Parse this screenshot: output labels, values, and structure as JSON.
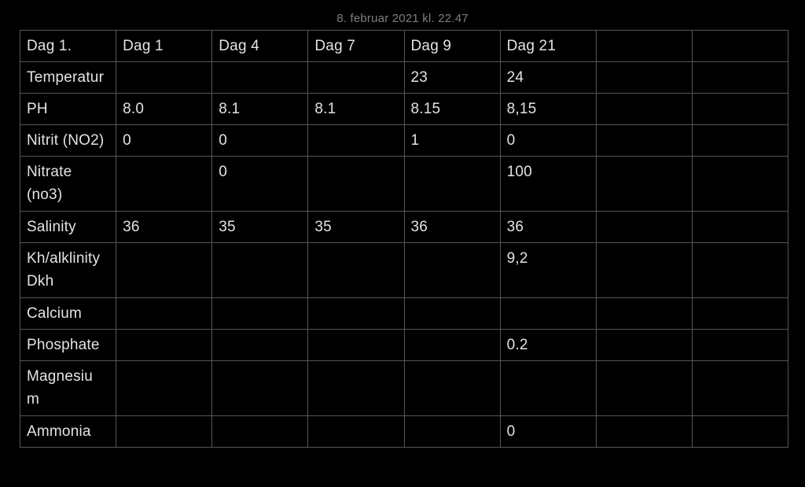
{
  "page_title": "8. februar 2021 kl. 22.47",
  "colors": {
    "background": "#000000",
    "text": "#e3e3e3",
    "title_text": "#7f7f7f",
    "table_border": "#555555"
  },
  "table": {
    "columns": [
      "Dag 1.",
      "Dag 1",
      "Dag 4",
      "Dag 7",
      "Dag 9",
      "Dag 21",
      "",
      ""
    ],
    "rows": [
      {
        "label": "Temperatur",
        "tall": false,
        "values": [
          "",
          "",
          "",
          "23",
          "24",
          "",
          ""
        ]
      },
      {
        "label": "PH",
        "tall": false,
        "values": [
          "8.0",
          "8.1",
          "8.1",
          "8.15",
          "8,15",
          "",
          ""
        ]
      },
      {
        "label": "Nitrit (NO2)",
        "tall": false,
        "values": [
          "0",
          "0",
          "",
          "1",
          "0",
          "",
          ""
        ]
      },
      {
        "label": "Nitrate\n(no3)",
        "tall": true,
        "values": [
          "",
          "0",
          "",
          "",
          "100",
          "",
          ""
        ]
      },
      {
        "label": "Salinity",
        "tall": false,
        "values": [
          "36",
          "35",
          "35",
          "36",
          "36",
          "",
          ""
        ]
      },
      {
        "label": "Kh/alklinity\nDkh",
        "tall": true,
        "values": [
          "",
          "",
          "",
          "",
          "9,2",
          "",
          ""
        ]
      },
      {
        "label": "Calcium",
        "tall": false,
        "values": [
          "",
          "",
          "",
          "",
          "",
          "",
          ""
        ]
      },
      {
        "label": "Phosphate",
        "tall": false,
        "values": [
          "",
          "",
          "",
          "",
          "0.2",
          "",
          ""
        ]
      },
      {
        "label": "Magnesiu\nm",
        "tall": true,
        "values": [
          "",
          "",
          "",
          "",
          "",
          "",
          ""
        ]
      },
      {
        "label": "Ammonia",
        "tall": false,
        "values": [
          "",
          "",
          "",
          "",
          "0",
          "",
          ""
        ]
      }
    ]
  }
}
